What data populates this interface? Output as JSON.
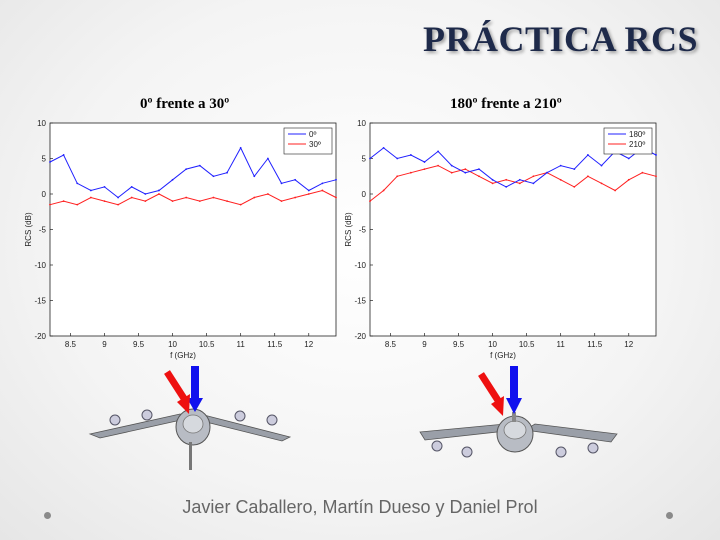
{
  "slide_title": "PRÁCTICA RCS",
  "footer": "Javier Caballero, Martín Dueso y Daniel Prol",
  "colors": {
    "title": "#1e2a4a",
    "blue": "#2020ff",
    "red": "#ff2020"
  },
  "chart_data": [
    {
      "type": "line",
      "title": "0º frente a 30º",
      "xlabel": "f (GHz)",
      "ylabel": "RCS (dB)",
      "xlim": [
        8.2,
        12.4
      ],
      "ylim": [
        -20,
        10
      ],
      "xticks": [
        8.5,
        9,
        9.5,
        10,
        10.5,
        11,
        11.5,
        12
      ],
      "xtick_labels": [
        "8.5",
        "9",
        "9.5",
        "10",
        "10.5",
        "11",
        "11.5",
        "12"
      ],
      "yticks": [
        -20,
        -15,
        -10,
        -5,
        0,
        5,
        10
      ],
      "ytick_labels": [
        "-20",
        "-15",
        "-10",
        "-5",
        "0",
        "5",
        "10"
      ],
      "legend_position": "top-right",
      "series": [
        {
          "name": "0º",
          "color": "#2020ff",
          "x": [
            8.2,
            8.4,
            8.6,
            8.8,
            9.0,
            9.2,
            9.4,
            9.6,
            9.8,
            10.0,
            10.2,
            10.4,
            10.6,
            10.8,
            11.0,
            11.2,
            11.4,
            11.6,
            11.8,
            12.0,
            12.2,
            12.4
          ],
          "y": [
            4.5,
            5.5,
            1.5,
            0.5,
            1.0,
            -0.5,
            1.0,
            0.0,
            0.5,
            2.0,
            3.5,
            4.0,
            2.5,
            3.0,
            6.5,
            2.5,
            5.0,
            1.5,
            2.0,
            0.5,
            1.5,
            2.0
          ]
        },
        {
          "name": "30º",
          "color": "#ff2020",
          "x": [
            8.2,
            8.4,
            8.6,
            8.8,
            9.0,
            9.2,
            9.4,
            9.6,
            9.8,
            10.0,
            10.2,
            10.4,
            10.6,
            10.8,
            11.0,
            11.2,
            11.4,
            11.6,
            11.8,
            12.0,
            12.2,
            12.4
          ],
          "y": [
            -1.5,
            -1.0,
            -1.5,
            -0.5,
            -1.0,
            -1.5,
            -0.5,
            -1.0,
            0.0,
            -1.0,
            -0.5,
            -1.0,
            -0.5,
            -1.0,
            -1.5,
            -0.5,
            0.0,
            -1.0,
            -0.5,
            0.0,
            0.5,
            -0.5
          ]
        }
      ]
    },
    {
      "type": "line",
      "title": "180º frente a 210º",
      "xlabel": "f (GHz)",
      "ylabel": "RCS (dB)",
      "xlim": [
        8.2,
        12.4
      ],
      "ylim": [
        -20,
        10
      ],
      "xticks": [
        8.5,
        9,
        9.5,
        10,
        10.5,
        11,
        11.5,
        12
      ],
      "xtick_labels": [
        "8.5",
        "9",
        "9.5",
        "10",
        "10.5",
        "11",
        "11.5",
        "12"
      ],
      "yticks": [
        -20,
        -15,
        -10,
        -5,
        0,
        5,
        10
      ],
      "ytick_labels": [
        "-20",
        "-15",
        "-10",
        "-5",
        "0",
        "5",
        "10"
      ],
      "legend_position": "top-right",
      "series": [
        {
          "name": "180º",
          "color": "#2020ff",
          "x": [
            8.2,
            8.4,
            8.6,
            8.8,
            9.0,
            9.2,
            9.4,
            9.6,
            9.8,
            10.0,
            10.2,
            10.4,
            10.6,
            10.8,
            11.0,
            11.2,
            11.4,
            11.6,
            11.8,
            12.0,
            12.2,
            12.4
          ],
          "y": [
            5.0,
            6.5,
            5.0,
            5.5,
            4.5,
            6.0,
            4.0,
            3.0,
            3.5,
            2.0,
            1.0,
            2.0,
            1.5,
            3.0,
            4.0,
            3.5,
            5.5,
            4.0,
            6.0,
            5.0,
            6.5,
            5.5
          ]
        },
        {
          "name": "210º",
          "color": "#ff2020",
          "x": [
            8.2,
            8.4,
            8.6,
            8.8,
            9.0,
            9.2,
            9.4,
            9.6,
            9.8,
            10.0,
            10.2,
            10.4,
            10.6,
            10.8,
            11.0,
            11.2,
            11.4,
            11.6,
            11.8,
            12.0,
            12.2,
            12.4
          ],
          "y": [
            -1.0,
            0.5,
            2.5,
            3.0,
            3.5,
            4.0,
            3.0,
            3.5,
            2.5,
            1.5,
            2.0,
            1.5,
            2.5,
            3.0,
            2.0,
            1.0,
            2.5,
            1.5,
            0.5,
            2.0,
            3.0,
            2.5
          ]
        }
      ]
    }
  ]
}
